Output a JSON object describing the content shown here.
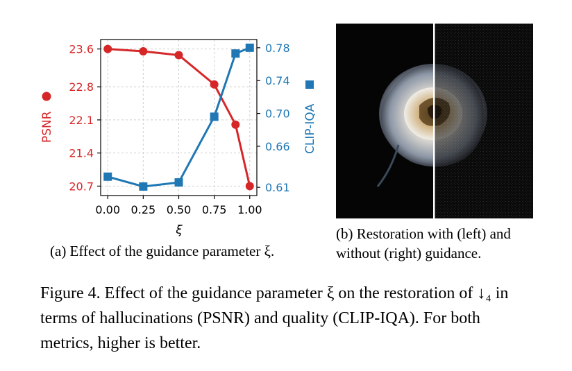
{
  "chart_data": {
    "type": "line",
    "x": [
      0.0,
      0.25,
      0.5,
      0.75,
      0.9,
      1.0
    ],
    "xlabel": "ξ",
    "xlim": [
      -0.05,
      1.05
    ],
    "xticks": [
      "0.00",
      "0.25",
      "0.50",
      "0.75",
      "1.00"
    ],
    "grid": true,
    "series": [
      {
        "name": "PSNR",
        "axis": "left",
        "marker": "circle",
        "color": "#d62728",
        "values": [
          23.6,
          23.55,
          23.47,
          22.85,
          22.0,
          20.7
        ],
        "ylim": [
          20.5,
          23.8
        ],
        "yticks": [
          "20.7",
          "21.4",
          "22.1",
          "22.8",
          "23.6"
        ],
        "ylabel": "PSNR"
      },
      {
        "name": "CLIP-IQA",
        "axis": "right",
        "marker": "square",
        "color": "#1f77b4",
        "values": [
          0.623,
          0.611,
          0.616,
          0.696,
          0.773,
          0.78
        ],
        "ylim": [
          0.6,
          0.79
        ],
        "yticks": [
          "0.61",
          "0.66",
          "0.70",
          "0.74",
          "0.78"
        ],
        "ylabel": "CLIP-IQA"
      }
    ]
  },
  "captions": {
    "a": "(a) Effect of the guidance parameter ξ.",
    "b_line1": "(b) Restoration with (left) and",
    "b_line2": "without (right) guidance.",
    "figure": "Figure 4. Effect of the guidance parameter ξ on the restoration of ↓₄ in terms of hallucinations (PSNR) and quality (CLIP-IQA). For both metrics, higher is better."
  }
}
